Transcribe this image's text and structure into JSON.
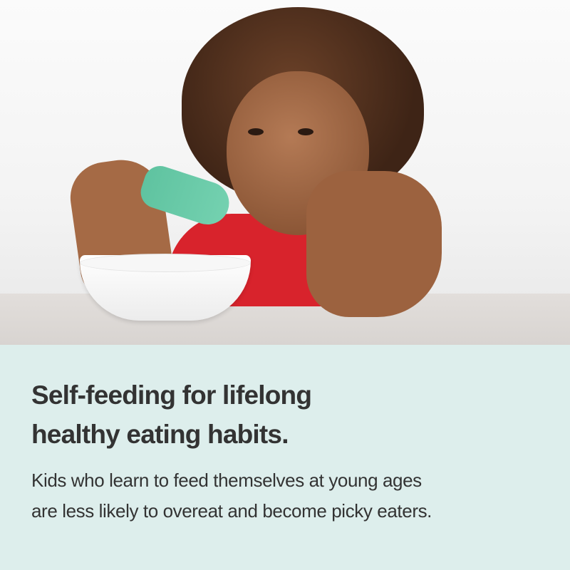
{
  "headline": {
    "line1": "Self-feeding for lifelong",
    "line2": "healthy eating habits."
  },
  "body": {
    "line1": "Kids who learn to feed themselves at young ages",
    "line2": "are less likely to overeat and become picky eaters."
  },
  "colors": {
    "panel_background": "#ddeeec",
    "text": "#333333",
    "spoon": "#6ccaa8",
    "shirt": "#d8232c"
  }
}
